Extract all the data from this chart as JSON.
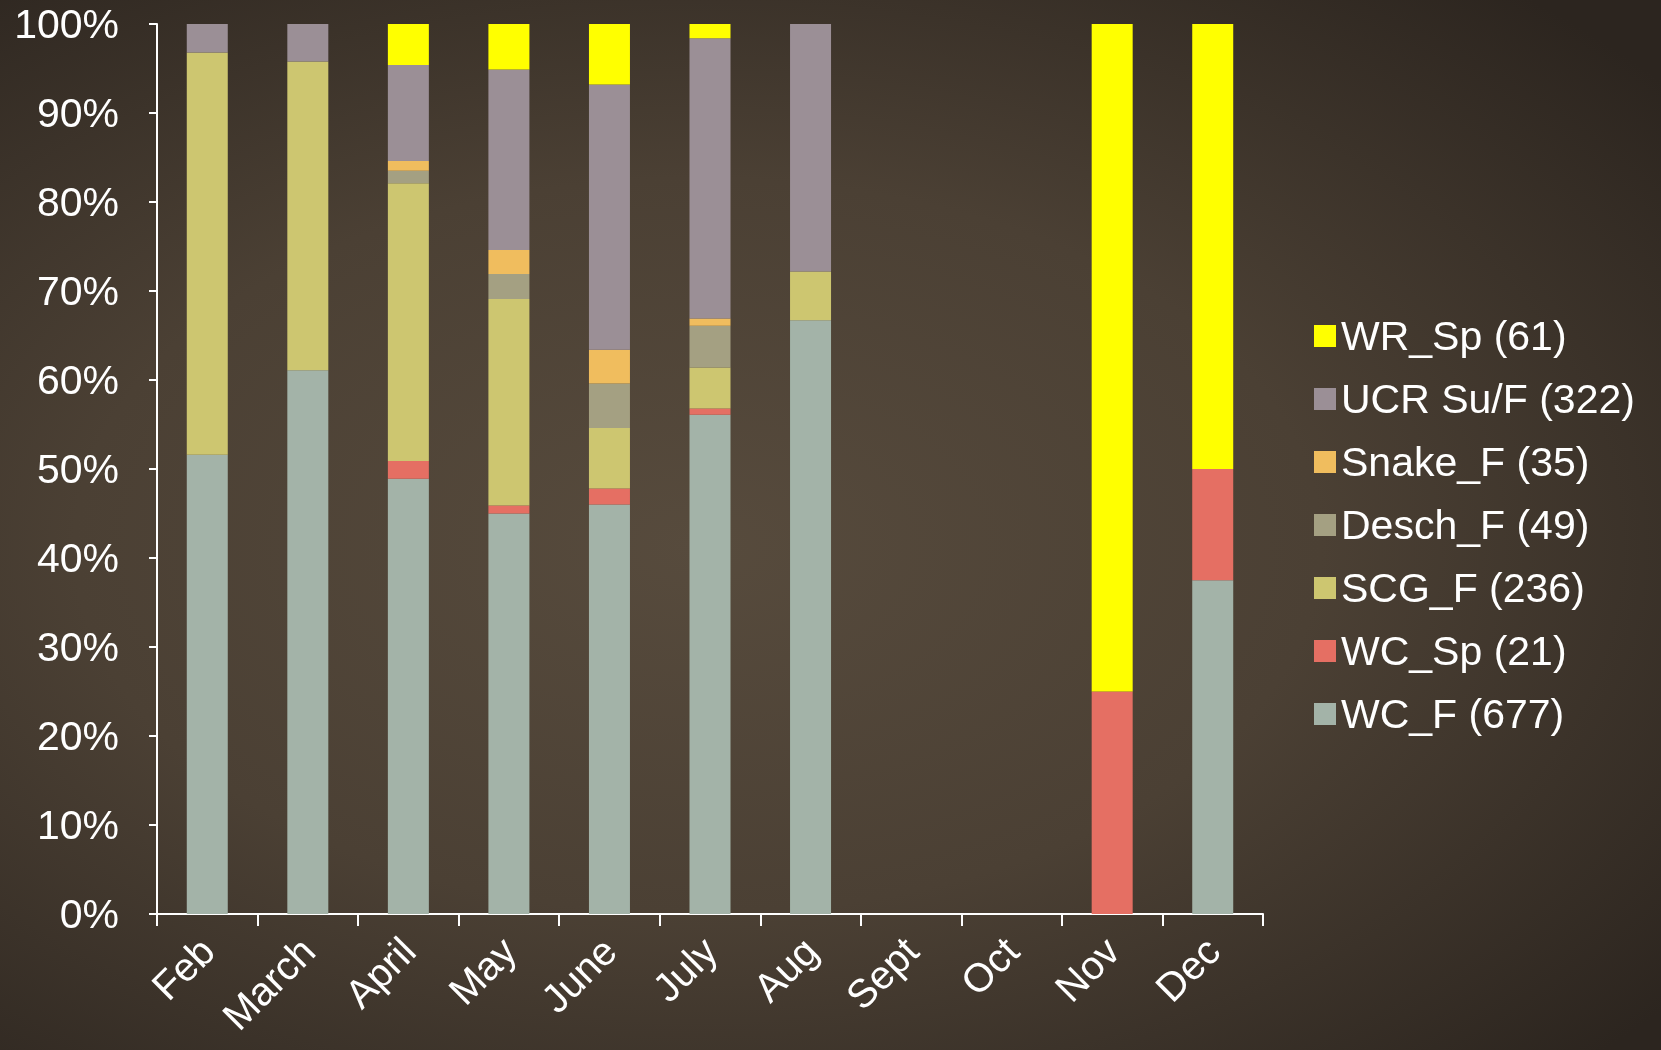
{
  "chart_data": {
    "type": "bar",
    "stacked": true,
    "categories": [
      "Feb",
      "March",
      "April",
      "May",
      "June",
      "July",
      "Aug",
      "Sept",
      "Oct",
      "Nov",
      "Dec"
    ],
    "series": [
      {
        "name": "WC_F (677)",
        "color": "#a3b3a8",
        "values": [
          51.6,
          61.1,
          48.9,
          45.0,
          46.0,
          56.1,
          66.7,
          null,
          null,
          null,
          37.5
        ]
      },
      {
        "name": "WC_Sp (21)",
        "color": "#e56f63",
        "values": [
          null,
          null,
          2.0,
          0.9,
          1.8,
          0.7,
          null,
          null,
          null,
          25,
          12.5
        ]
      },
      {
        "name": "SCG_F (236)",
        "color": "#cdc670",
        "values": [
          45.2,
          34.7,
          31.2,
          23.2,
          6.8,
          4.6,
          5.5,
          null,
          null,
          null,
          null
        ]
      },
      {
        "name": "Desch_F (49)",
        "color": "#a4a082",
        "values": [
          null,
          null,
          1.4,
          2.8,
          5.0,
          4.7,
          null,
          null,
          null,
          null,
          null
        ]
      },
      {
        "name": "Snake_F (35)",
        "color": "#f0bd5e",
        "values": [
          null,
          null,
          1.1,
          2.7,
          3.8,
          0.8,
          null,
          null,
          null,
          null,
          null
        ]
      },
      {
        "name": "UCR Su/F (322)",
        "color": "#9b8f96",
        "values": [
          3.2,
          4.2,
          10.8,
          20.3,
          29.8,
          31.5,
          27.8,
          null,
          null,
          null,
          null
        ]
      },
      {
        "name": "WR_Sp (61)",
        "color": "#ffff00",
        "values": [
          null,
          null,
          4.6,
          5.1,
          6.8,
          1.6,
          null,
          null,
          null,
          75,
          50
        ]
      }
    ],
    "ylim": [
      0,
      100
    ],
    "yticks": [
      {
        "value": 0,
        "label": "0%"
      },
      {
        "value": 10,
        "label": "10%"
      },
      {
        "value": 20,
        "label": "20%"
      },
      {
        "value": 30,
        "label": "30%"
      },
      {
        "value": 40,
        "label": "40%"
      },
      {
        "value": 50,
        "label": "50%"
      },
      {
        "value": 60,
        "label": "60%"
      },
      {
        "value": 70,
        "label": "70%"
      },
      {
        "value": 80,
        "label": "80%"
      },
      {
        "value": 90,
        "label": "90%"
      },
      {
        "value": 100,
        "label": "100%"
      }
    ],
    "legend": "right"
  }
}
